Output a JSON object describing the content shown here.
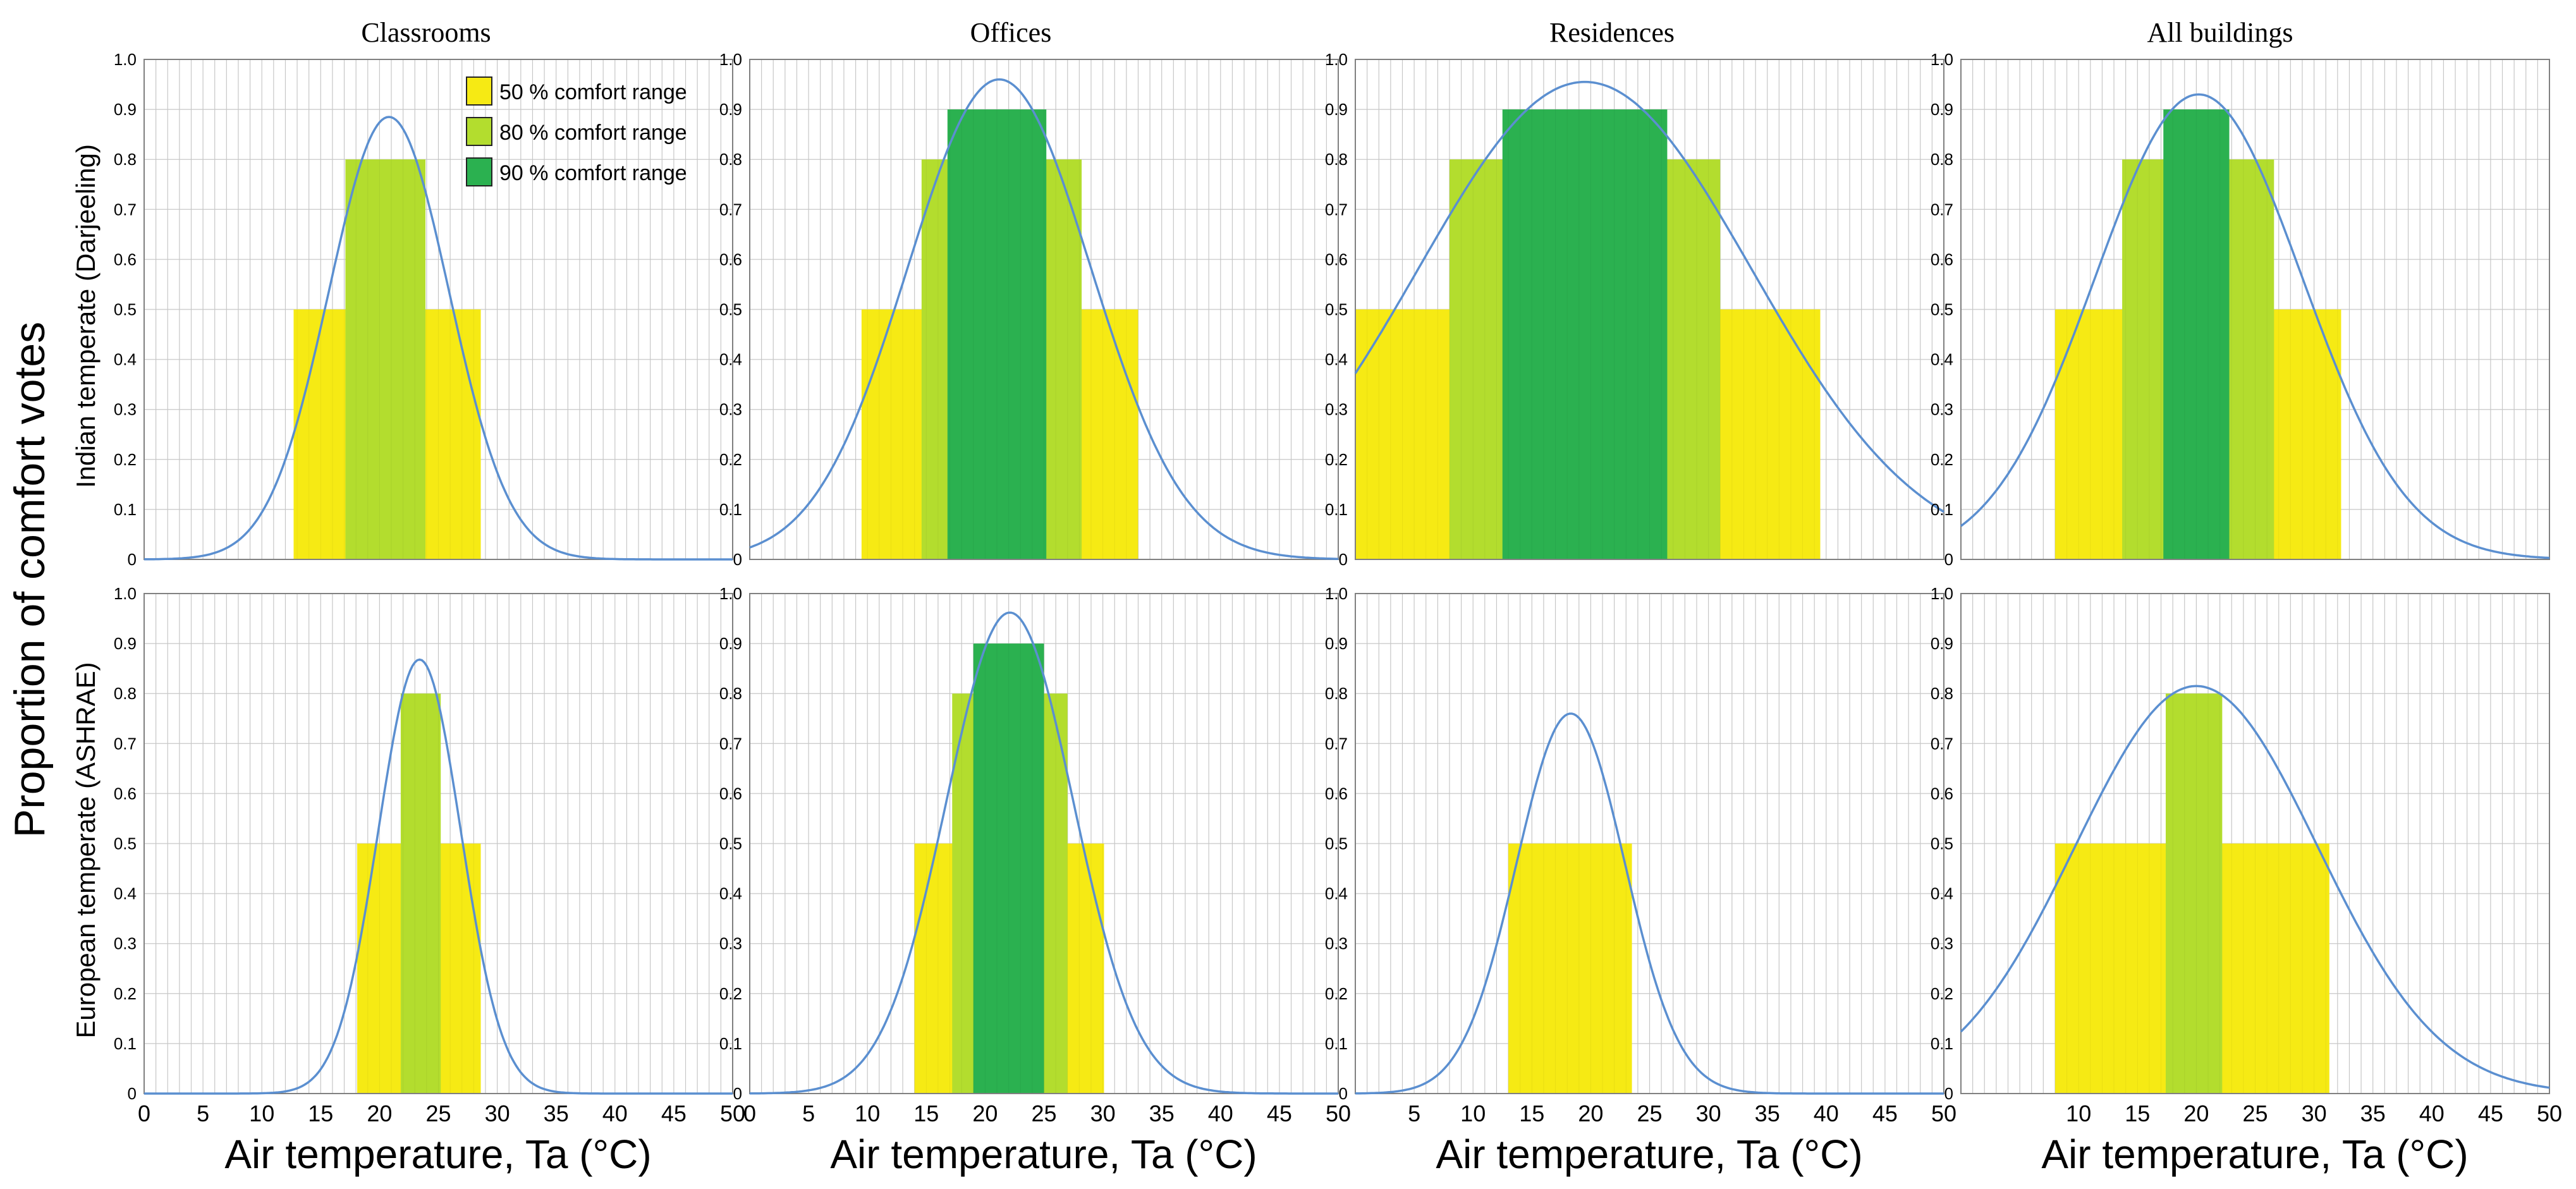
{
  "figure": {
    "ylabel": "Proportion of comfort votes",
    "xlabel": "Air temperature, Ta (°C)",
    "col_titles": [
      "Classrooms",
      "Offices",
      "Residences",
      "All buildings"
    ],
    "row_labels": [
      "Indian temperate (Darjeeling)",
      "European temperate (ASHRAE)"
    ]
  },
  "legend": [
    {
      "label": "50 % comfort range",
      "color": "#f6ea14"
    },
    {
      "label": "80 % comfort range",
      "color": "#b3dd2e"
    },
    {
      "label": "90 % comfort range",
      "color": "#2bb150"
    }
  ],
  "colors": {
    "curve": "#5b8fd0",
    "grid": "#d0d0d0",
    "frame": "#808080",
    "band50": "#f6ea14",
    "band80": "#b3dd2e",
    "band90": "#2bb150"
  },
  "chart_data": [
    {
      "type": "area",
      "title": "Classrooms",
      "row": "Indian temperate (Darjeeling)",
      "xlim": [
        0,
        50
      ],
      "ylim": [
        0,
        1
      ],
      "xticks": [
        "0",
        "5",
        "10",
        "15",
        "20",
        "25",
        "30",
        "35",
        "40",
        "45",
        "50"
      ],
      "yticks": [
        "0",
        "0.1",
        "0.2",
        "0.3",
        "0.4",
        "0.5",
        "0.6",
        "0.7",
        "0.8",
        "0.9",
        "1.0"
      ],
      "curve": {
        "peak": 0.885,
        "mean": 20.8,
        "sd": 5.1
      },
      "bands": [
        {
          "level": 0.5,
          "x": [
            12.7,
            28.6
          ]
        },
        {
          "level": 0.8,
          "x": [
            17.1,
            23.9
          ]
        }
      ]
    },
    {
      "type": "area",
      "title": "Offices",
      "row": "Indian temperate (Darjeeling)",
      "xlim": [
        0,
        50
      ],
      "ylim": [
        0,
        1
      ],
      "xticks": [
        "0",
        "5",
        "10",
        "15",
        "20",
        "25",
        "30",
        "35",
        "40",
        "45",
        "50"
      ],
      "yticks": [
        "0",
        "0.1",
        "0.2",
        "0.3",
        "0.4",
        "0.5",
        "0.6",
        "0.7",
        "0.8",
        "0.9",
        "1.0"
      ],
      "curve": {
        "peak": 0.96,
        "mean": 21.2,
        "sd": 7.8
      },
      "bands": [
        {
          "level": 0.5,
          "x": [
            9.5,
            33.0
          ]
        },
        {
          "level": 0.8,
          "x": [
            14.6,
            28.2
          ]
        },
        {
          "level": 0.9,
          "x": [
            16.8,
            25.2
          ]
        }
      ]
    },
    {
      "type": "area",
      "title": "Residences",
      "row": "Indian temperate (Darjeeling)",
      "xlim": [
        0,
        50
      ],
      "ylim": [
        0,
        1
      ],
      "xticks": [
        "",
        "5",
        "10",
        "15",
        "20",
        "25",
        "30",
        "35",
        "40",
        "45",
        "50"
      ],
      "yticks": [
        "0",
        "0.1",
        "0.2",
        "0.3",
        "0.4",
        "0.5",
        "0.6",
        "0.7",
        "0.8",
        "0.9",
        "1.0"
      ],
      "curve": {
        "peak": 0.955,
        "mean": 19.5,
        "sd": 14.2
      },
      "bands": [
        {
          "level": 0.5,
          "x": [
            0,
            39.5
          ]
        },
        {
          "level": 0.8,
          "x": [
            8.0,
            31.0
          ]
        },
        {
          "level": 0.9,
          "x": [
            12.5,
            26.5
          ]
        }
      ]
    },
    {
      "type": "area",
      "title": "All buildings",
      "row": "Indian temperate (Darjeeling)",
      "xlim": [
        0,
        50
      ],
      "ylim": [
        0,
        1
      ],
      "xticks": [
        "",
        "10",
        "15",
        "20",
        "25",
        "30",
        "35",
        "40",
        "45",
        "50"
      ],
      "yticks": [
        "0",
        "0.1",
        "0.2",
        "0.3",
        "0.4",
        "0.5",
        "0.6",
        "0.7",
        "0.8",
        "0.9",
        "1.0"
      ],
      "curve": {
        "peak": 0.93,
        "mean": 20.2,
        "sd": 8.8
      },
      "bands": [
        {
          "level": 0.5,
          "x": [
            8.0,
            32.3
          ]
        },
        {
          "level": 0.8,
          "x": [
            13.7,
            26.6
          ]
        },
        {
          "level": 0.9,
          "x": [
            17.2,
            22.8
          ]
        }
      ]
    },
    {
      "type": "area",
      "title": "Classrooms",
      "row": "European temperate (ASHRAE)",
      "xlim": [
        0,
        50
      ],
      "ylim": [
        0,
        1
      ],
      "xticks": [
        "0",
        "5",
        "10",
        "15",
        "20",
        "25",
        "30",
        "35",
        "40",
        "45",
        "50"
      ],
      "yticks": [
        "0",
        "0.1",
        "0.2",
        "0.3",
        "0.4",
        "0.5",
        "0.6",
        "0.7",
        "0.8",
        "0.9",
        "1.0"
      ],
      "curve": {
        "peak": 0.868,
        "mean": 23.4,
        "sd": 3.5
      },
      "bands": [
        {
          "level": 0.5,
          "x": [
            18.1,
            28.6
          ]
        },
        {
          "level": 0.8,
          "x": [
            21.8,
            25.2
          ]
        }
      ]
    },
    {
      "type": "area",
      "title": "Offices",
      "row": "European temperate (ASHRAE)",
      "xlim": [
        0,
        50
      ],
      "ylim": [
        0,
        1
      ],
      "xticks": [
        "0",
        "5",
        "10",
        "15",
        "20",
        "25",
        "30",
        "35",
        "40",
        "45",
        "50"
      ],
      "yticks": [
        "0",
        "0.1",
        "0.2",
        "0.3",
        "0.4",
        "0.5",
        "0.6",
        "0.7",
        "0.8",
        "0.9",
        "1.0"
      ],
      "curve": {
        "peak": 0.962,
        "mean": 22.1,
        "sd": 5.4
      },
      "bands": [
        {
          "level": 0.5,
          "x": [
            14.0,
            30.1
          ]
        },
        {
          "level": 0.8,
          "x": [
            17.2,
            27.0
          ]
        },
        {
          "level": 0.9,
          "x": [
            19.0,
            25.0
          ]
        }
      ]
    },
    {
      "type": "area",
      "title": "Residences",
      "row": "European temperate (ASHRAE)",
      "xlim": [
        0,
        50
      ],
      "ylim": [
        0,
        1
      ],
      "xticks": [
        "",
        "5",
        "10",
        "15",
        "20",
        "25",
        "30",
        "35",
        "40",
        "45",
        "50"
      ],
      "yticks": [
        "0",
        "0.1",
        "0.2",
        "0.3",
        "0.4",
        "0.5",
        "0.6",
        "0.7",
        "0.8",
        "0.9",
        "1.0"
      ],
      "curve": {
        "peak": 0.76,
        "mean": 18.3,
        "sd": 4.6
      },
      "bands": [
        {
          "level": 0.5,
          "x": [
            13.0,
            23.5
          ]
        }
      ]
    },
    {
      "type": "area",
      "title": "All buildings",
      "row": "European temperate (ASHRAE)",
      "xlim": [
        0,
        50
      ],
      "ylim": [
        0,
        1
      ],
      "xticks": [
        "",
        "10",
        "15",
        "20",
        "25",
        "30",
        "35",
        "40",
        "45",
        "50"
      ],
      "yticks": [
        "0",
        "0.1",
        "0.2",
        "0.3",
        "0.4",
        "0.5",
        "0.6",
        "0.7",
        "0.8",
        "0.9",
        "1.0"
      ],
      "curve": {
        "peak": 0.815,
        "mean": 20.0,
        "sd": 10.3
      },
      "bands": [
        {
          "level": 0.5,
          "x": [
            8.0,
            31.3
          ]
        },
        {
          "level": 0.8,
          "x": [
            17.4,
            22.2
          ]
        }
      ]
    }
  ]
}
